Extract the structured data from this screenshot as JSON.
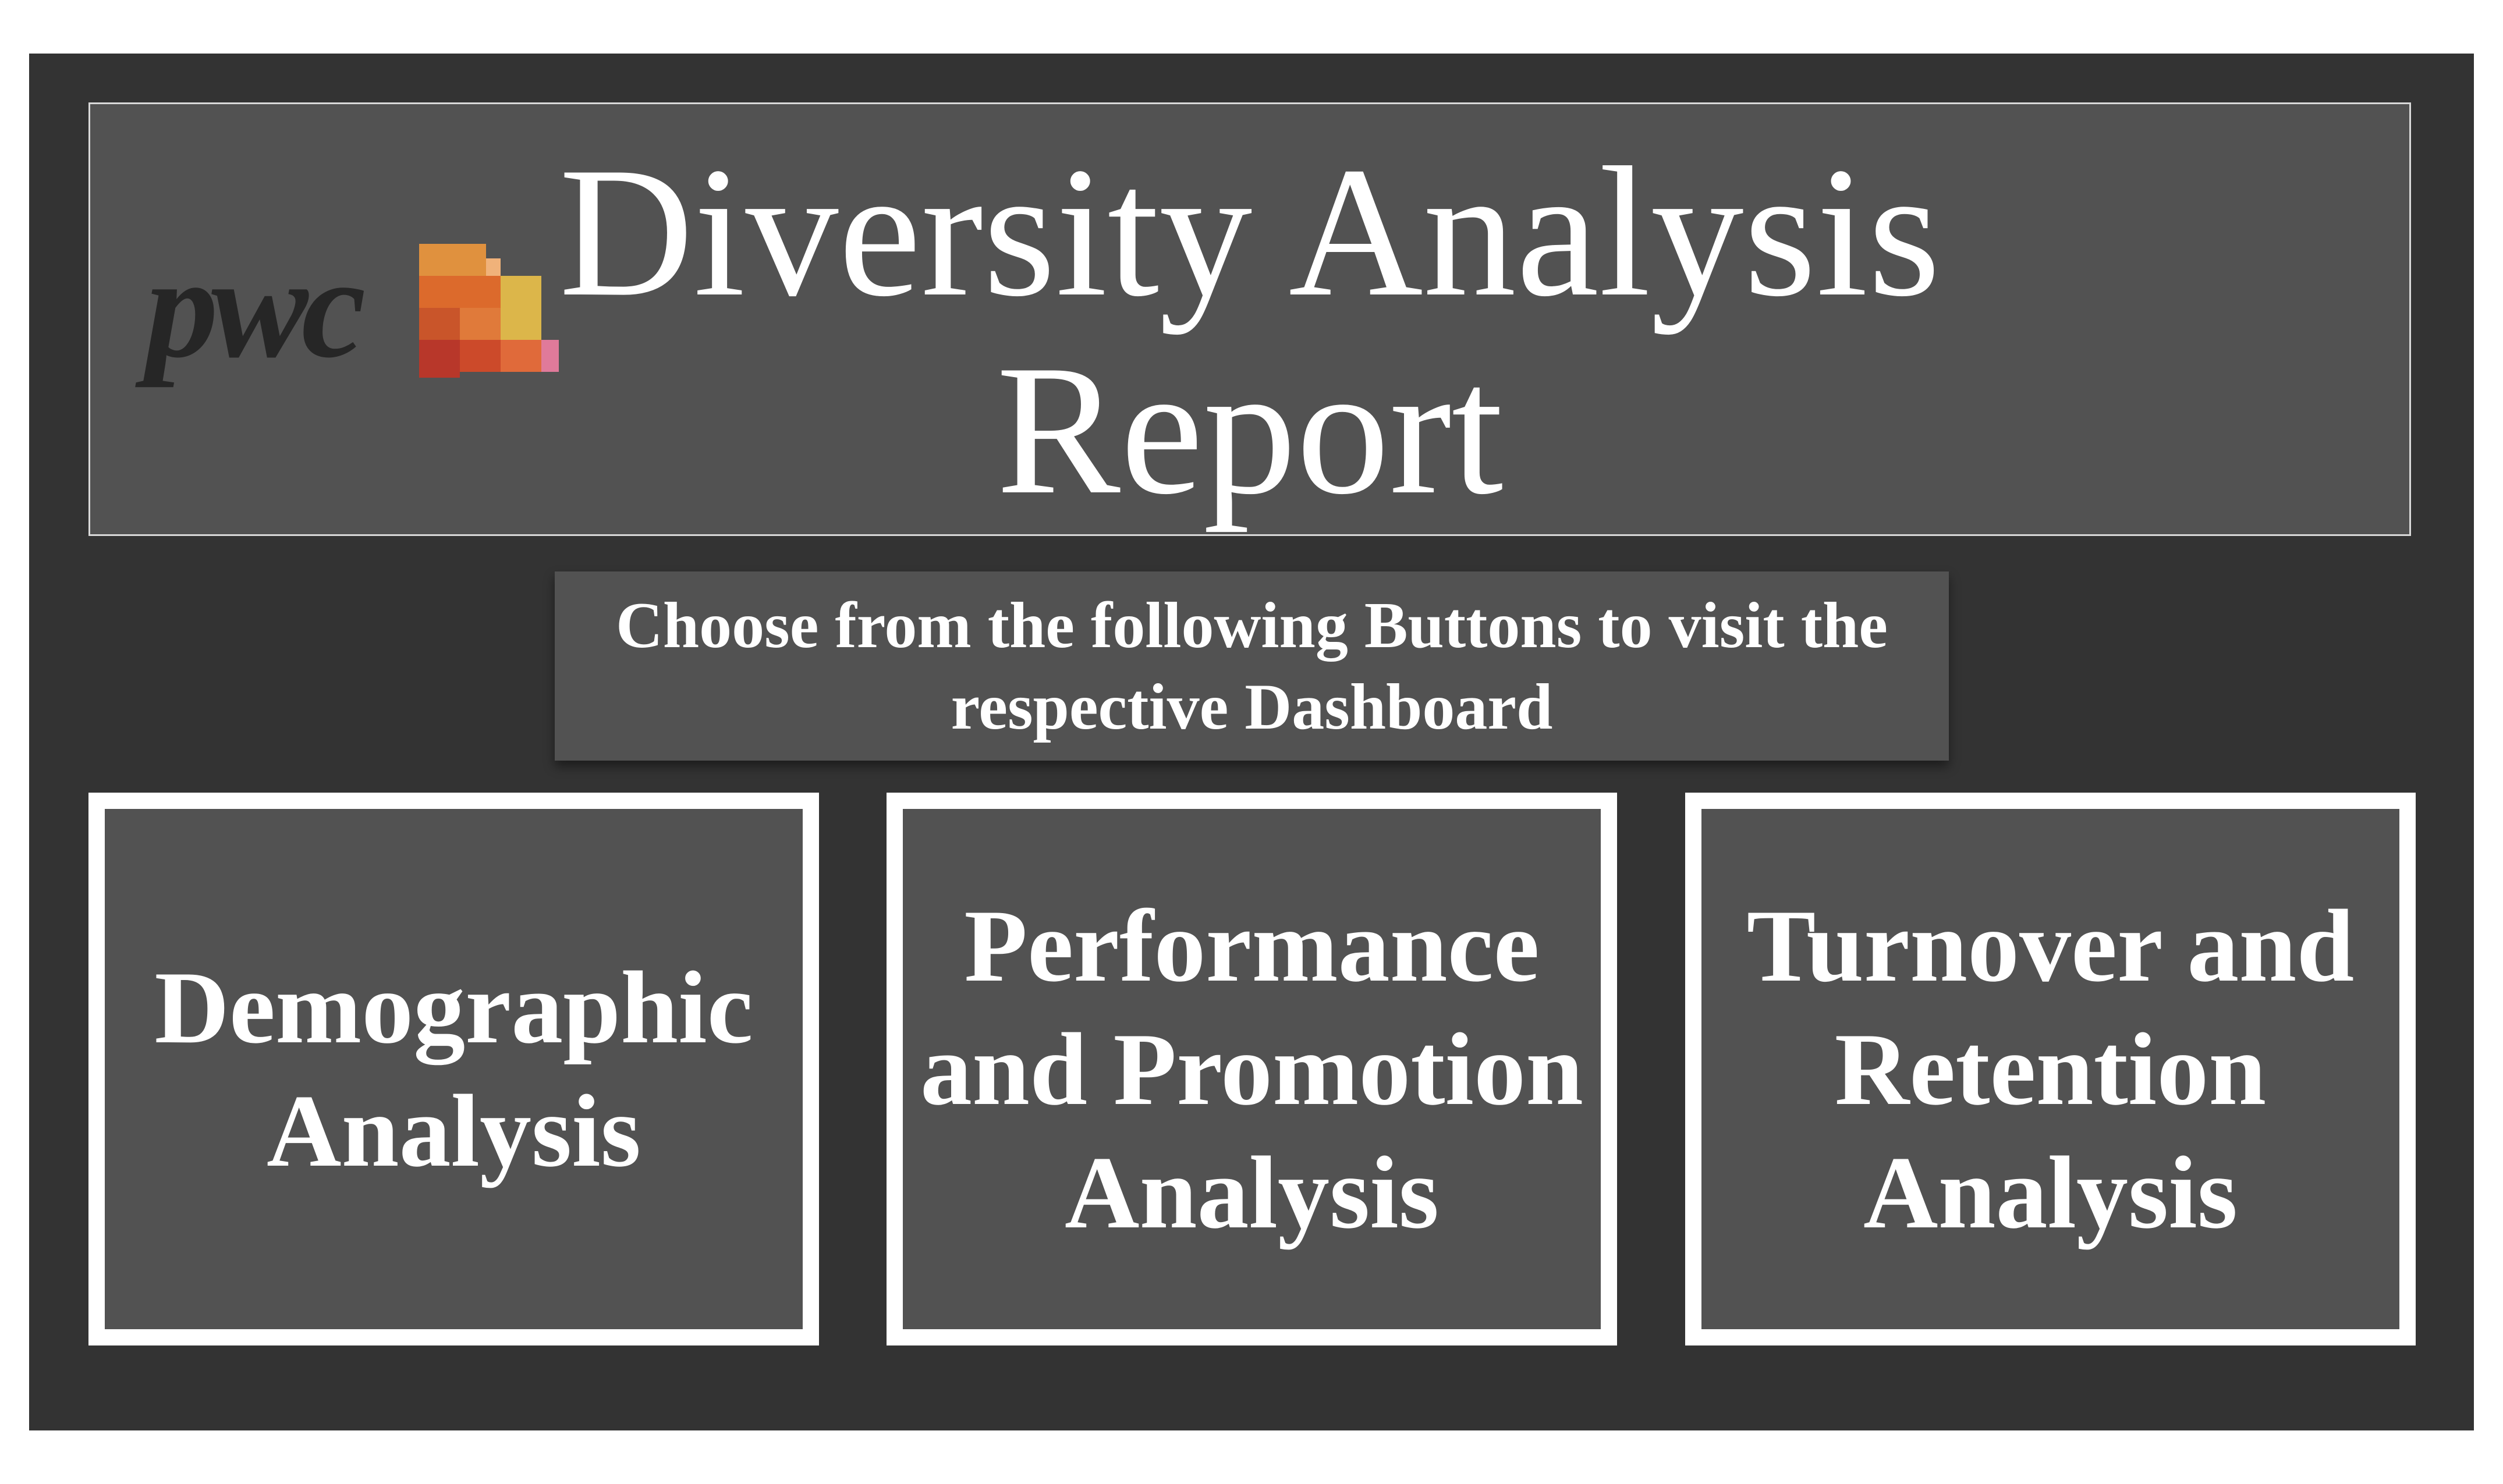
{
  "header": {
    "logo_text": "pwc",
    "title": "Diversity Analysis Report"
  },
  "instruction": {
    "text": "Choose from the following Buttons to visit the respective Dashboard"
  },
  "buttons": [
    {
      "label": "Demographic Analysis"
    },
    {
      "label": "Performance and Promotion Analysis"
    },
    {
      "label": "Turnover and Retention Analysis"
    }
  ],
  "colors": {
    "page_background": "#ffffff",
    "frame_background": "#333333",
    "panel_background": "#525252",
    "text": "#ffffff",
    "border": "#ffffff"
  }
}
